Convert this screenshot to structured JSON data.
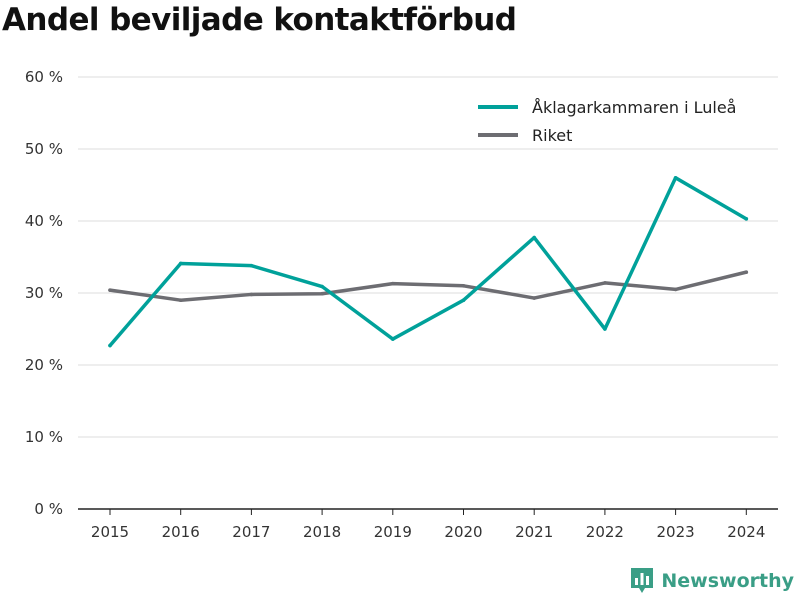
{
  "chart_data": {
    "type": "line",
    "title": "Andel beviljade kontaktförbud",
    "x": [
      "2015",
      "2016",
      "2017",
      "2018",
      "2019",
      "2020",
      "2021",
      "2022",
      "2023",
      "2024"
    ],
    "series": [
      {
        "name": "Åklagarkammaren i Luleå",
        "color": "#00a19a",
        "values": [
          22.7,
          34.1,
          33.8,
          30.9,
          23.6,
          29.0,
          37.7,
          25.0,
          46.0,
          40.3
        ]
      },
      {
        "name": "Riket",
        "color": "#6d6d72",
        "values": [
          30.4,
          29.0,
          29.8,
          29.9,
          31.3,
          31.0,
          29.3,
          31.4,
          30.5,
          32.9
        ]
      }
    ],
    "yticks": [
      "0 %",
      "10 %",
      "20 %",
      "30 %",
      "40 %",
      "50 %",
      "60 %"
    ],
    "ylim": [
      0,
      60
    ],
    "grid": true,
    "legend_position": "top-right"
  },
  "brand": {
    "name": "Newsworthy",
    "color": "#3a9e86"
  }
}
